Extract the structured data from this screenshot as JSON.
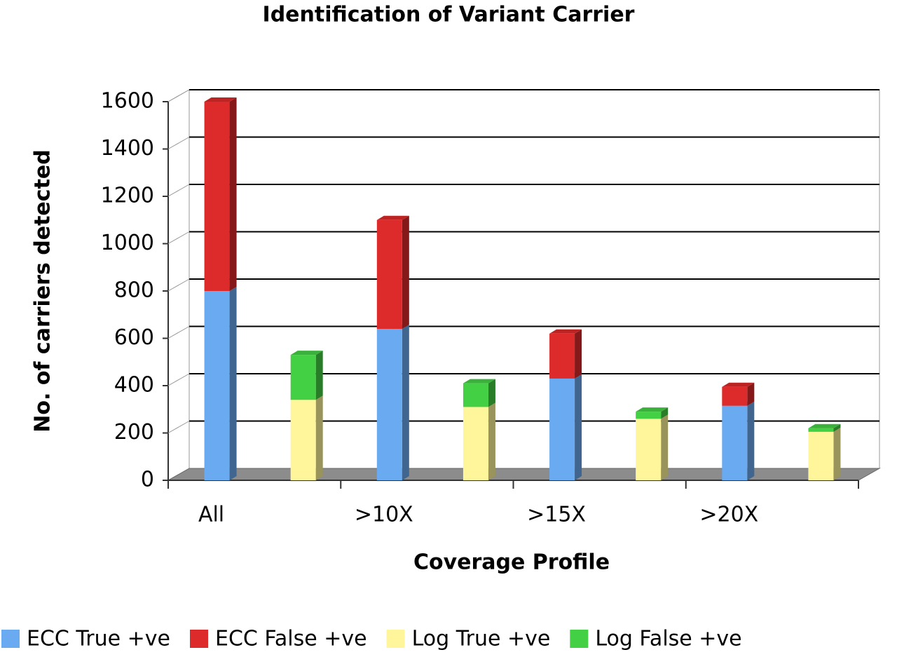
{
  "chart_data": {
    "type": "bar",
    "stacked": true,
    "title": "Identification of Variant Carrier",
    "x_label": "Coverage Profile",
    "y_label": "No. of carriers detected",
    "categories": [
      "All",
      null,
      ">10X",
      null,
      ">15X",
      null,
      ">20X",
      null
    ],
    "series": [
      {
        "name": "ECC True +ve",
        "color": "#6aaaf0",
        "values": [
          800,
          null,
          640,
          null,
          430,
          null,
          315,
          null
        ]
      },
      {
        "name": "ECC False +ve",
        "color": "#dd2a2a",
        "values": [
          800,
          null,
          460,
          null,
          190,
          null,
          80,
          null
        ]
      },
      {
        "name": "Log True +ve",
        "color": "#fff59a",
        "values": [
          null,
          340,
          null,
          310,
          null,
          260,
          null,
          205
        ]
      },
      {
        "name": "Log False +ve",
        "color": "#44d044",
        "values": [
          null,
          190,
          null,
          100,
          null,
          30,
          null,
          15
        ]
      }
    ],
    "ylim": [
      0,
      1600
    ],
    "yticks": [
      0,
      200,
      400,
      600,
      800,
      1000,
      1200,
      1400,
      1600
    ],
    "grid": true
  }
}
